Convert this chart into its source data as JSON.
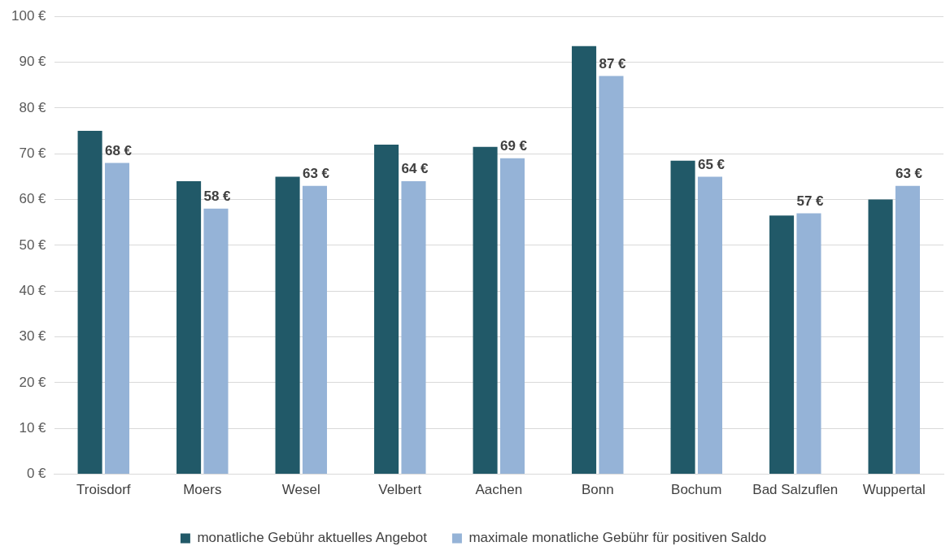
{
  "chart_data": {
    "type": "bar",
    "categories": [
      "Troisdorf",
      "Moers",
      "Wesel",
      "Velbert",
      "Aachen",
      "Bonn",
      "Bochum",
      "Bad Salzuflen",
      "Wuppertal"
    ],
    "series": [
      {
        "name": "monatliche Gebühr aktuelles Angebot",
        "color": "#215968",
        "values": [
          75,
          64,
          65,
          72,
          71.5,
          93.5,
          68.5,
          56.5,
          60
        ]
      },
      {
        "name": "maximale monatliche Gebühr für positiven Saldo",
        "color": "#95b3d7",
        "values": [
          68,
          58,
          63,
          64,
          69,
          87,
          65,
          57,
          63
        ],
        "value_labels": [
          "68 €",
          "58 €",
          "63 €",
          "64 €",
          "69 €",
          "87 €",
          "65 €",
          "57 €",
          "63 €"
        ]
      }
    ],
    "ylim": [
      0,
      100
    ],
    "yticks": [
      {
        "value": 0,
        "label": "0 €"
      },
      {
        "value": 10,
        "label": "10 €"
      },
      {
        "value": 20,
        "label": "20 €"
      },
      {
        "value": 30,
        "label": "30 €"
      },
      {
        "value": 40,
        "label": "40 €"
      },
      {
        "value": 50,
        "label": "50 €"
      },
      {
        "value": 60,
        "label": "60 €"
      },
      {
        "value": 70,
        "label": "70 €"
      },
      {
        "value": 80,
        "label": "80 €"
      },
      {
        "value": 90,
        "label": "90 €"
      },
      {
        "value": 100,
        "label": "100 €"
      }
    ],
    "grid": "y",
    "legend": "bottom"
  }
}
